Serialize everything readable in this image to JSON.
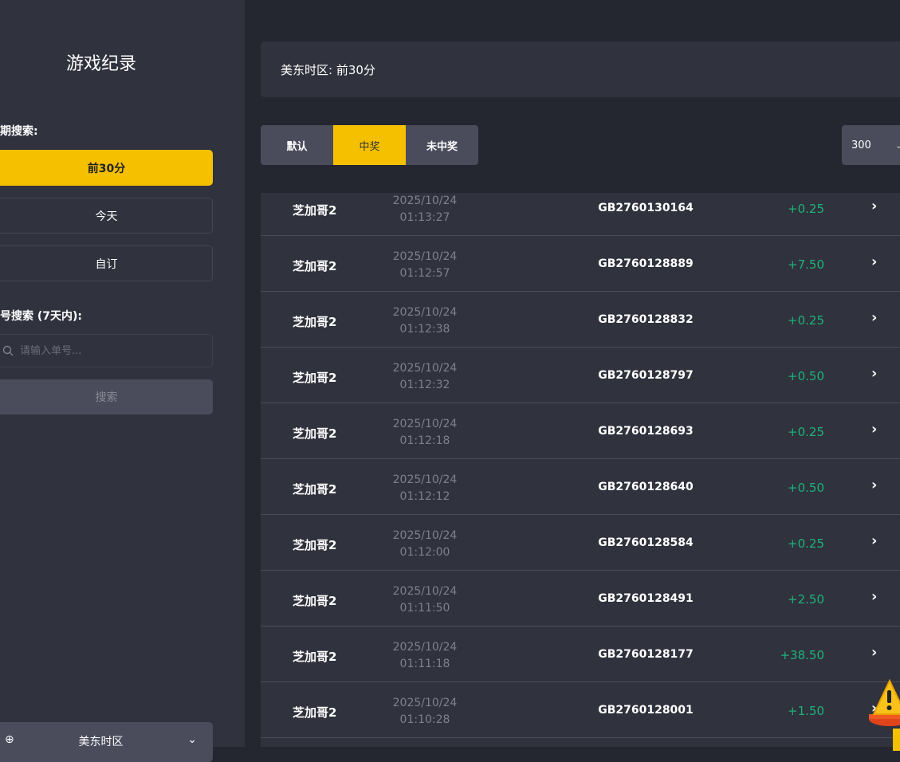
{
  "sidebar": {
    "title": "游戏纪录",
    "date_search_label": "期搜索:",
    "date_options": [
      "前30分",
      "今天",
      "自订"
    ],
    "active_date_option": 0,
    "order_search_label": "号搜索 (7天内):",
    "search_placeholder": "请输入单号...",
    "search_button": "搜索",
    "timezone": "美东时区"
  },
  "info_bar": {
    "text": "美东时区: 前30分"
  },
  "filter_tabs": [
    {
      "label": "默认"
    },
    {
      "label": "中奖"
    },
    {
      "label": "未中奖"
    }
  ],
  "active_tab": 1,
  "page_size": "300",
  "colors": {
    "accent": "#f5c000",
    "win": "#1db37a"
  },
  "records": [
    {
      "game": "芝加哥2",
      "date": "2025/10/24",
      "time": "01:13:27",
      "id": "GB2760130164",
      "amount": "+0.25"
    },
    {
      "game": "芝加哥2",
      "date": "2025/10/24",
      "time": "01:12:57",
      "id": "GB2760128889",
      "amount": "+7.50"
    },
    {
      "game": "芝加哥2",
      "date": "2025/10/24",
      "time": "01:12:38",
      "id": "GB2760128832",
      "amount": "+0.25"
    },
    {
      "game": "芝加哥2",
      "date": "2025/10/24",
      "time": "01:12:32",
      "id": "GB2760128797",
      "amount": "+0.50"
    },
    {
      "game": "芝加哥2",
      "date": "2025/10/24",
      "time": "01:12:18",
      "id": "GB2760128693",
      "amount": "+0.25"
    },
    {
      "game": "芝加哥2",
      "date": "2025/10/24",
      "time": "01:12:12",
      "id": "GB2760128640",
      "amount": "+0.50"
    },
    {
      "game": "芝加哥2",
      "date": "2025/10/24",
      "time": "01:12:00",
      "id": "GB2760128584",
      "amount": "+0.25"
    },
    {
      "game": "芝加哥2",
      "date": "2025/10/24",
      "time": "01:11:50",
      "id": "GB2760128491",
      "amount": "+2.50"
    },
    {
      "game": "芝加哥2",
      "date": "2025/10/24",
      "time": "01:11:18",
      "id": "GB2760128177",
      "amount": "+38.50"
    },
    {
      "game": "芝加哥2",
      "date": "2025/10/24",
      "time": "01:10:28",
      "id": "GB2760128001",
      "amount": "+1.50"
    }
  ]
}
